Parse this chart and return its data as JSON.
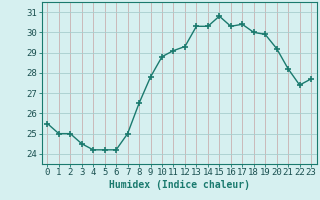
{
  "x": [
    0,
    1,
    2,
    3,
    4,
    5,
    6,
    7,
    8,
    9,
    10,
    11,
    12,
    13,
    14,
    15,
    16,
    17,
    18,
    19,
    20,
    21,
    22,
    23
  ],
  "y": [
    25.5,
    25.0,
    25.0,
    24.5,
    24.2,
    24.2,
    24.2,
    25.0,
    26.5,
    27.8,
    28.8,
    29.1,
    29.3,
    30.3,
    30.3,
    30.8,
    30.3,
    30.4,
    30.0,
    29.9,
    29.2,
    28.2,
    27.4,
    27.7
  ],
  "line_color": "#1a7a6e",
  "marker": "+",
  "marker_size": 4,
  "bg_color": "#d6f0f0",
  "grid_color": "#c0dede",
  "grid_color2": "#d4b8b8",
  "xlabel": "Humidex (Indice chaleur)",
  "ylim": [
    23.5,
    31.5
  ],
  "xlim": [
    -0.5,
    23.5
  ],
  "yticks": [
    24,
    25,
    26,
    27,
    28,
    29,
    30,
    31
  ],
  "xticks": [
    0,
    1,
    2,
    3,
    4,
    5,
    6,
    7,
    8,
    9,
    10,
    11,
    12,
    13,
    14,
    15,
    16,
    17,
    18,
    19,
    20,
    21,
    22,
    23
  ],
  "label_fontsize": 7,
  "tick_fontsize": 6.5
}
